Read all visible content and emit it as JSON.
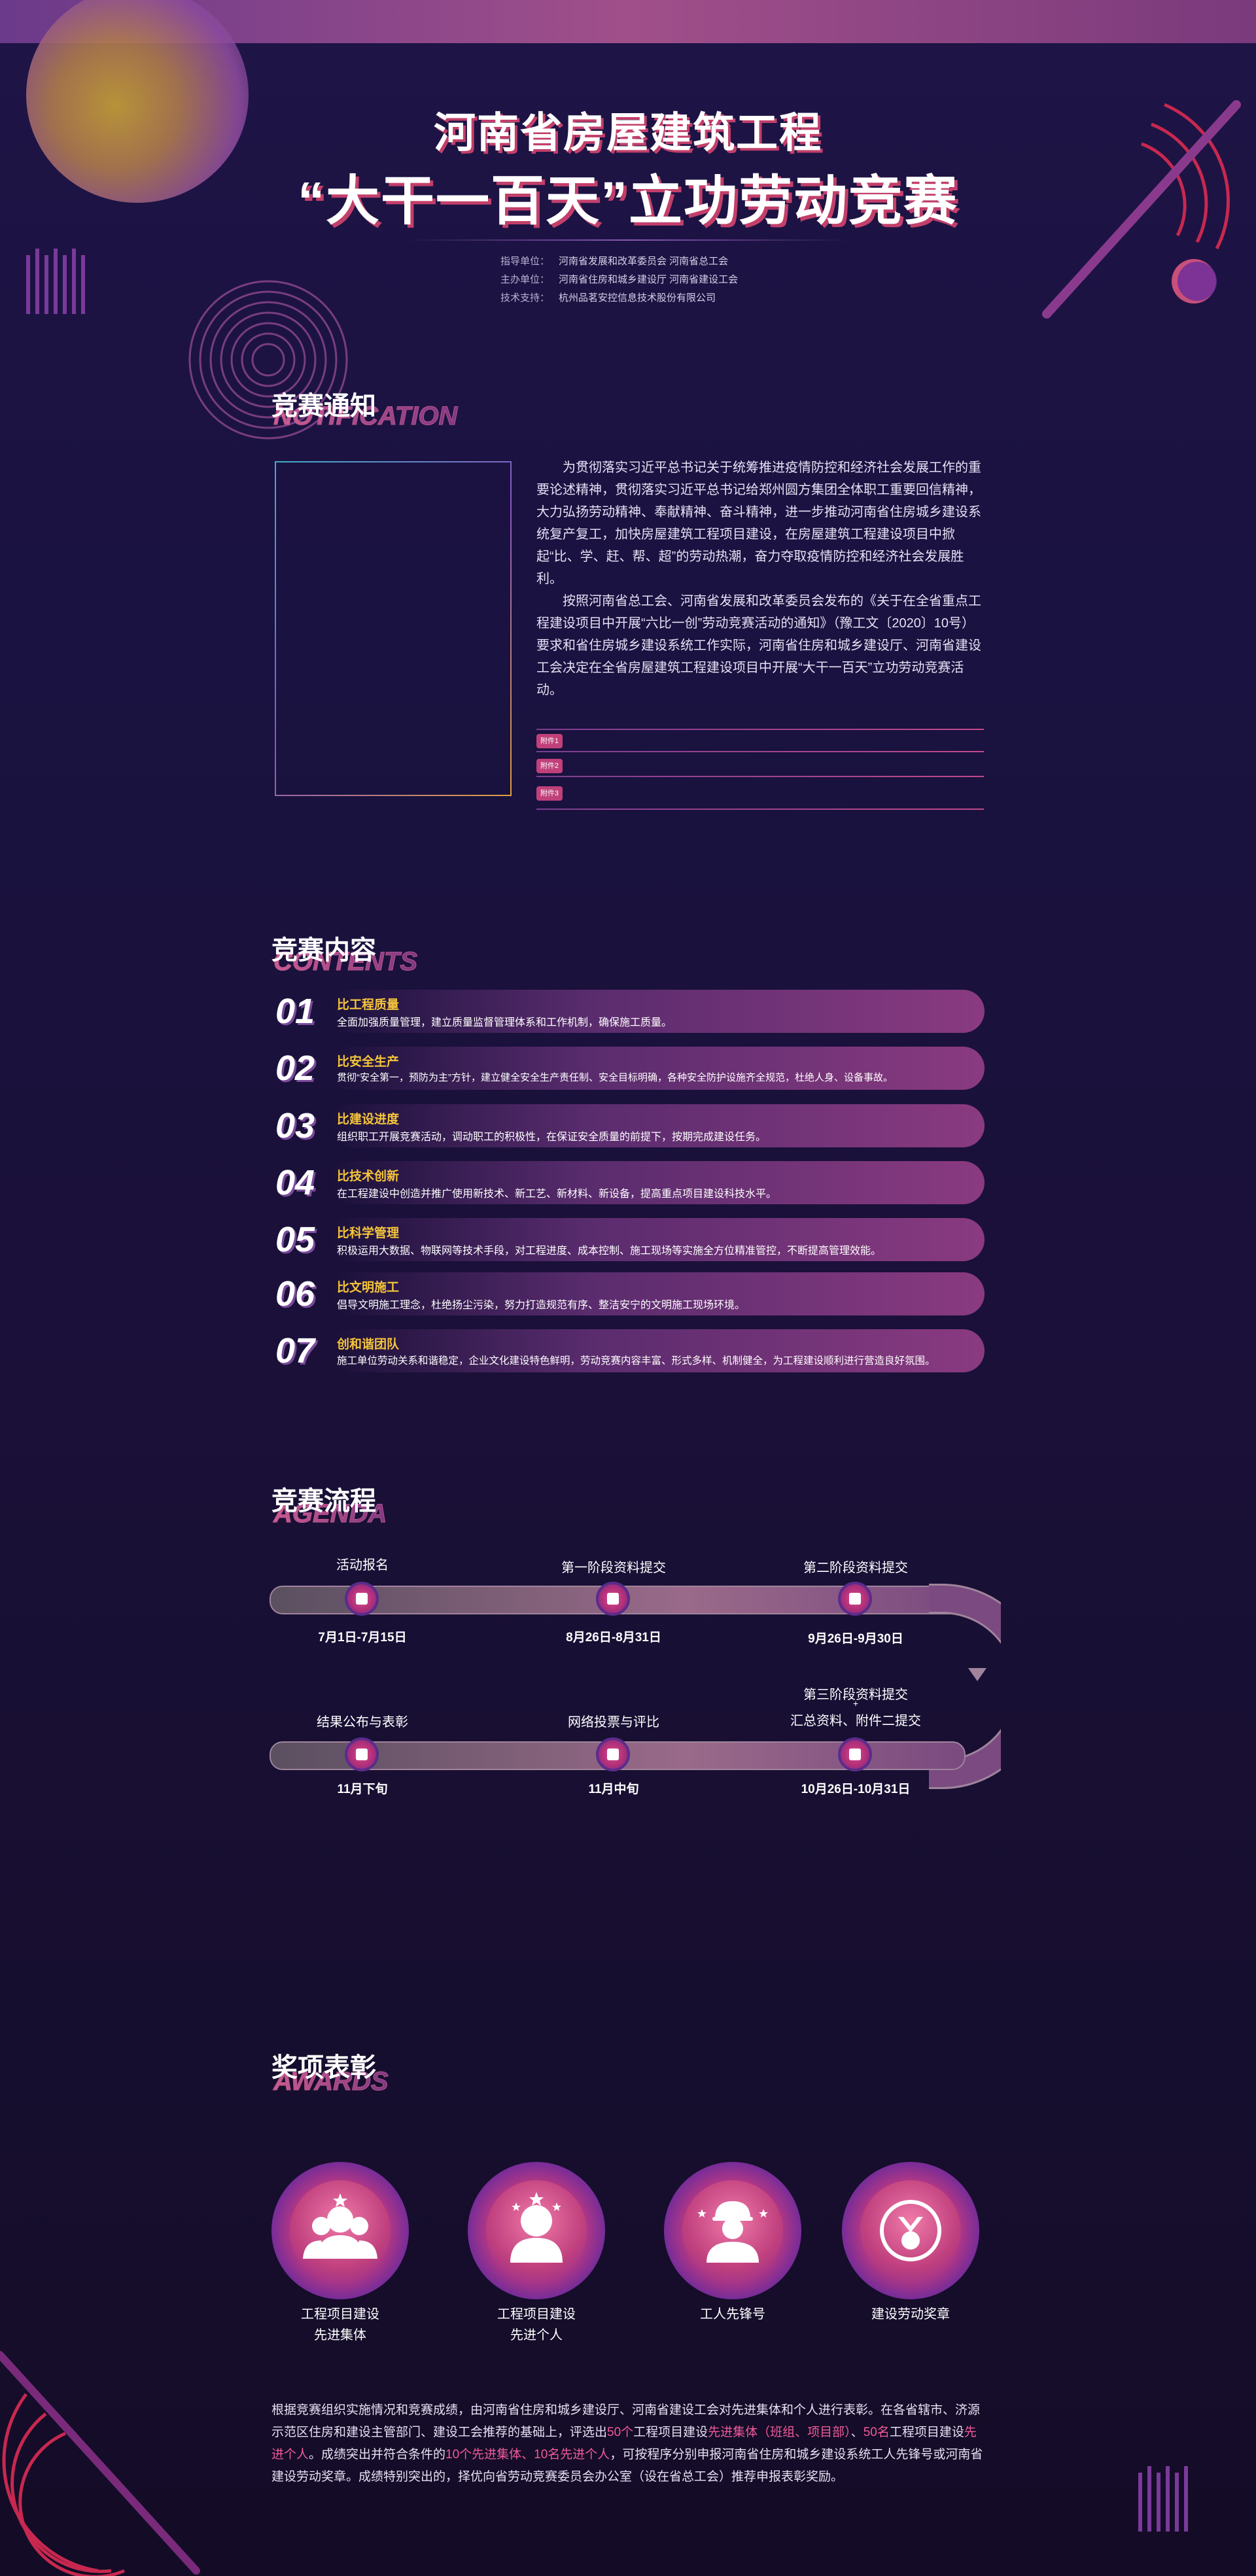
{
  "header": {
    "title_line1": "河南省房屋建筑工程",
    "title_line2": "“大干一百天”立功劳动竞赛",
    "meta": [
      {
        "key": "指导单位：",
        "value": "河南省发展和改革委员会  河南省总工会"
      },
      {
        "key": "主办单位：",
        "value": "河南省住房和城乡建设厅  河南省建设工会"
      },
      {
        "key": "技术支持：",
        "value": "杭州品茗安控信息技术股份有限公司"
      }
    ]
  },
  "notice": {
    "title": "竞赛通知",
    "subtitle": "NOTIFICATION",
    "paragraph1": "为贯彻落实习近平总书记关于统筹推进疫情防控和经济社会发展工作的重要论述精神，贯彻落实习近平总书记给郑州圆方集团全体职工重要回信精神，大力弘扬劳动精神、奉献精神、奋斗精神，进一步推动河南省住房城乡建设系统复产复工，加快房屋建筑工程项目建设，在房屋建筑工程建设项目中掀起“比、学、赶、帮、超”的劳动热潮，奋力夺取疫情防控和经济社会发展胜利。",
    "paragraph2": "按照河南省总工会、河南省发展和改革委员会发布的《关于在全省重点工程建设项目中开展“六比一创”劳动竞赛活动的通知》（豫工文〔2020〕10号）要求和省住房城乡建设系统工作实际，河南省住房和城乡建设厅、河南省建设工会决定在全省房屋建筑工程建设项目中开展“大干一百天”立功劳动竞赛活动。",
    "attachments": [
      "附件1",
      "附件2",
      "附件3"
    ]
  },
  "contents": {
    "title": "竞赛内容",
    "subtitle": "CONTENTS",
    "items": [
      {
        "num": "01",
        "name": "比工程质量",
        "desc": "全面加强质量管理，建立质量监督管理体系和工作机制，确保施工质量。"
      },
      {
        "num": "02",
        "name": "比安全生产",
        "desc": "贯彻“安全第一，预防为主”方针，建立健全安全生产责任制、安全目标明确，各种安全防护设施齐全规范，杜绝人身、设备事故。"
      },
      {
        "num": "03",
        "name": "比建设进度",
        "desc": "组织职工开展竞赛活动，调动职工的积极性，在保证安全质量的前提下，按期完成建设任务。"
      },
      {
        "num": "04",
        "name": "比技术创新",
        "desc": "在工程建设中创造并推广使用新技术、新工艺、新材料、新设备，提高重点项目建设科技水平。"
      },
      {
        "num": "05",
        "name": "比科学管理",
        "desc": "积极运用大数据、物联网等技术手段，对工程进度、成本控制、施工现场等实施全方位精准管控，不断提高管理效能。"
      },
      {
        "num": "06",
        "name": "比文明施工",
        "desc": "倡导文明施工理念，杜绝扬尘污染，努力打造规范有序、整洁安宁的文明施工现场环境。"
      },
      {
        "num": "07",
        "name": "创和谐团队",
        "desc": "施工单位劳动关系和谐稳定，企业文化建设特色鲜明，劳动竞赛内容丰富、形式多样、机制健全，为工程建设顺利进行营造良好氛围。"
      }
    ]
  },
  "agenda": {
    "title": "竞赛流程",
    "subtitle": "AGENDA",
    "stages": [
      {
        "name": "活动报名",
        "date": "7月1日-7月15日",
        "icon": "edit-icon"
      },
      {
        "name": "第一阶段资料提交",
        "date": "8月26日-8月31日",
        "icon": "inbox-icon"
      },
      {
        "name": "第二阶段资料提交",
        "date": "9月26日-9月30日",
        "icon": "inbox-icon"
      },
      {
        "name_line1": "第三阶段资料提交",
        "name_plus": "+",
        "name_line2": "汇总资料、附件二提交",
        "date": "10月26日-10月31日",
        "icon": "inbox-icon"
      },
      {
        "name": "网络投票与评比",
        "date": "11月中旬",
        "icon": "chart-icon"
      },
      {
        "name": "结果公布与表彰",
        "date": "11月下旬",
        "icon": "edit-icon"
      }
    ]
  },
  "awards": {
    "title": "奖项表彰",
    "subtitle": "AWARDS",
    "items": [
      {
        "line1": "工程项目建设",
        "line2": "先进集体",
        "icon": "group-icon"
      },
      {
        "line1": "工程项目建设",
        "line2": "先进个人",
        "icon": "person-icon"
      },
      {
        "line1": "工人先锋号",
        "line2": "",
        "icon": "worker-icon"
      },
      {
        "line1": "建设劳动奖章",
        "line2": "",
        "icon": "medal-icon"
      }
    ],
    "footer_part1": "根据竞赛组织实施情况和竞赛成绩，由河南省住房和城乡建设厅、河南省建设工会对先进集体和个人进行表彰。在各省辖市、济源示范区住房和建设主管部门、建设工会推荐的基础上，评选出",
    "footer_hl1": "50个",
    "footer_part2": "工程项目建设",
    "footer_hl2": "先进集体（班组、项目部）",
    "footer_part3": "、",
    "footer_hl3": "50名",
    "footer_part4": "工程项目建设",
    "footer_hl4": "先进个人",
    "footer_part5": "。成绩突出并符合条件的",
    "footer_hl5": "10个先进集体、10名先进个人",
    "footer_part6": "，可按程序分别申报河南省住房和城乡建设系统工人先锋号或河南省建设劳动奖章。成绩特别突出的，择优向省劳动竞赛委员会办公室（设在省总工会）推荐申报表彰奖励。"
  },
  "colors": {
    "accent": "#f05a9a",
    "highlight": "#f5c53a",
    "background": "#1a1240"
  }
}
